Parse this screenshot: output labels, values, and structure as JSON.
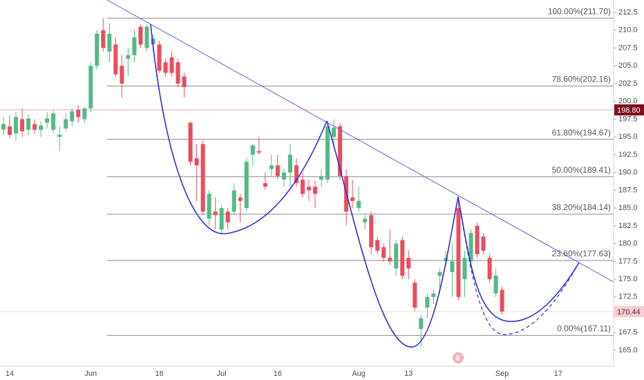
{
  "chart_data": {
    "type": "candlestick",
    "categories": [
      null,
      "14",
      null,
      null,
      null,
      null,
      null,
      null,
      null,
      null,
      null,
      null,
      null,
      null,
      "Jun",
      null,
      null,
      null,
      null,
      null,
      null,
      null,
      null,
      null,
      null,
      "18",
      null,
      null,
      null,
      null,
      null,
      null,
      null,
      null,
      null,
      "Jul",
      null,
      null,
      null,
      null,
      null,
      null,
      null,
      null,
      "16",
      null,
      null,
      null,
      null,
      null,
      null,
      null,
      null,
      null,
      null,
      null,
      null,
      "Aug",
      null,
      null,
      null,
      null,
      null,
      null,
      null,
      "13",
      null,
      null,
      null,
      null,
      null,
      null,
      null,
      null,
      null,
      null,
      null,
      null,
      null,
      null,
      "Sep",
      null,
      null,
      null,
      null,
      null,
      null,
      null,
      null,
      "17"
    ],
    "open": [
      196.0,
      196.5,
      195.5,
      197.5,
      196.0,
      196.8,
      196.0,
      197.0,
      196.0,
      195.0,
      196.2,
      197.2,
      198.8,
      197.5,
      199.0,
      205.0,
      210.0,
      207.0,
      208.0,
      205.0,
      206.0,
      206.5,
      210.5,
      207.5,
      208.0,
      208.0,
      205.5,
      206.2,
      205.5,
      203.5,
      197.0,
      192.0,
      194.0,
      183.5,
      184.5,
      182.0,
      184.5,
      184.5,
      186.5,
      185.0,
      192.5,
      193.0,
      188.5,
      190.5,
      191.0,
      189.0,
      190.0,
      191.0,
      189.0,
      188.0,
      188.0,
      189.0,
      189.0,
      195.0,
      196.5,
      189.5,
      186.5,
      185.0,
      183.0,
      184.0,
      180.5,
      179.5,
      178.0,
      176.5,
      180.5,
      178.0,
      174.5,
      168.0,
      171.0,
      172.5,
      175.5,
      177.5,
      176.0,
      185.0,
      175.0,
      177.5,
      182.5,
      181.0,
      178.0,
      173.0,
      173.5,
      null,
      null,
      null,
      null,
      null,
      null,
      null,
      null,
      null
    ],
    "high": [
      197.8,
      198.0,
      198.5,
      199.0,
      198.2,
      197.5,
      197.2,
      198.5,
      198.8,
      196.5,
      198.3,
      199.0,
      199.5,
      199.2,
      205.5,
      210.0,
      211.7,
      211.0,
      209.0,
      206.5,
      207.5,
      210.0,
      210.8,
      210.8,
      209.5,
      208.5,
      206.0,
      207.0,
      206.0,
      204.0,
      197.2,
      194.0,
      194.5,
      187.5,
      186.5,
      185.5,
      185.0,
      188.5,
      187.0,
      192.0,
      194.0,
      195.0,
      190.0,
      192.5,
      192.5,
      190.5,
      194.0,
      192.0,
      190.0,
      189.0,
      188.8,
      190.5,
      197.0,
      197.5,
      197.0,
      190.5,
      189.0,
      188.0,
      184.0,
      184.5,
      181.0,
      180.0,
      182.0,
      180.5,
      181.0,
      179.0,
      175.0,
      170.0,
      173.0,
      173.5,
      176.5,
      179.0,
      180.0,
      186.8,
      179.0,
      182.0,
      183.0,
      181.5,
      178.5,
      176.5,
      174.0,
      null,
      null,
      null,
      null,
      null,
      null,
      null,
      null,
      null
    ],
    "low": [
      195.2,
      194.8,
      194.5,
      195.0,
      195.2,
      195.5,
      195.0,
      196.2,
      195.5,
      193.0,
      195.8,
      196.5,
      197.0,
      197.0,
      198.5,
      204.5,
      207.0,
      205.5,
      203.5,
      200.5,
      203.5,
      205.5,
      207.5,
      207.0,
      207.0,
      204.0,
      203.5,
      203.5,
      202.0,
      200.5,
      191.0,
      186.0,
      184.0,
      182.5,
      182.0,
      181.5,
      182.0,
      184.0,
      183.0,
      184.5,
      191.0,
      192.5,
      187.5,
      189.5,
      189.0,
      188.0,
      188.0,
      188.0,
      186.5,
      186.0,
      185.0,
      188.0,
      188.5,
      193.5,
      189.0,
      182.5,
      185.0,
      184.5,
      182.0,
      178.5,
      178.5,
      177.5,
      177.0,
      175.5,
      175.0,
      175.0,
      170.5,
      165.5,
      169.5,
      171.5,
      173.0,
      177.0,
      172.5,
      172.0,
      172.5,
      176.5,
      178.0,
      178.5,
      174.5,
      172.5,
      170.0,
      null,
      null,
      null,
      null,
      null,
      null,
      null,
      null,
      null
    ],
    "close": [
      196.8,
      195.3,
      197.8,
      195.8,
      197.6,
      196.0,
      196.6,
      197.6,
      198.3,
      195.3,
      197.5,
      198.6,
      197.8,
      199.0,
      205.0,
      209.5,
      207.5,
      209.5,
      203.8,
      202.5,
      206.5,
      209.0,
      208.0,
      210.5,
      208.8,
      204.3,
      204.0,
      204.0,
      202.5,
      202.0,
      191.5,
      191.0,
      184.5,
      187.0,
      184.0,
      185.0,
      183.0,
      187.5,
      186.0,
      191.5,
      193.8,
      192.8,
      188.0,
      191.0,
      189.5,
      190.0,
      192.5,
      188.5,
      187.0,
      187.5,
      187.0,
      189.5,
      196.5,
      196.3,
      189.5,
      184.5,
      186.0,
      186.0,
      183.5,
      179.5,
      179.0,
      178.0,
      177.5,
      180.0,
      175.5,
      176.5,
      171.0,
      169.5,
      172.5,
      173.0,
      176.0,
      178.0,
      177.5,
      172.5,
      178.0,
      181.5,
      178.5,
      179.0,
      175.0,
      175.5,
      170.44,
      null,
      null,
      null,
      null,
      null,
      null,
      null,
      null,
      null
    ],
    "up_color": "#53b987",
    "down_color": "#eb4d5c",
    "ylim": [
      162.77,
      214.25
    ],
    "yticks": [
      {
        "value": 165,
        "label": "165.0"
      },
      {
        "value": 167.5,
        "label": "167.5"
      },
      {
        "value": 170,
        "label": "170.0"
      },
      {
        "value": 172.5,
        "label": "172.5"
      },
      {
        "value": 175,
        "label": "175.0"
      },
      {
        "value": 177.5,
        "label": "177.5"
      },
      {
        "value": 180,
        "label": "180.0"
      },
      {
        "value": 182.5,
        "label": "182.5"
      },
      {
        "value": 185,
        "label": "185.0"
      },
      {
        "value": 187.5,
        "label": "187.5"
      },
      {
        "value": 190,
        "label": "190.0"
      },
      {
        "value": 192.5,
        "label": "192.5"
      },
      {
        "value": 195,
        "label": "195.0"
      },
      {
        "value": 197.5,
        "label": "197.5"
      },
      {
        "value": 200,
        "label": "200.0"
      },
      {
        "value": 202.5,
        "label": "202.5"
      },
      {
        "value": 205,
        "label": "205.0"
      },
      {
        "value": 207.5,
        "label": "207.5"
      },
      {
        "value": 210,
        "label": "210.0"
      },
      {
        "value": 212.5,
        "label": "212.5"
      }
    ],
    "fib_levels": [
      {
        "value": 211.7,
        "label": "100.00%(211.70)"
      },
      {
        "value": 202.16,
        "label": "78.60%(202.16)"
      },
      {
        "value": 194.67,
        "label": "61.80%(194.67)"
      },
      {
        "value": 189.41,
        "label": "50.00%(189.41)"
      },
      {
        "value": 184.14,
        "label": "38.20%(184.14)"
      },
      {
        "value": 177.63,
        "label": "23.60%(177.63)"
      },
      {
        "value": 167.11,
        "label": "0.00%(167.11)"
      }
    ],
    "price_markers": [
      {
        "value": 198.8,
        "label": "198.80",
        "color": "#7f0f1e",
        "text_color": "#ffffff",
        "line_color": "#f2a6ae"
      },
      {
        "value": 170.44,
        "label": "170.44",
        "color": "#f8cdd2",
        "text_color": "#5a2a30",
        "line_color": "#f9d8dc"
      }
    ],
    "earnings_marker": "E",
    "grid": false
  }
}
